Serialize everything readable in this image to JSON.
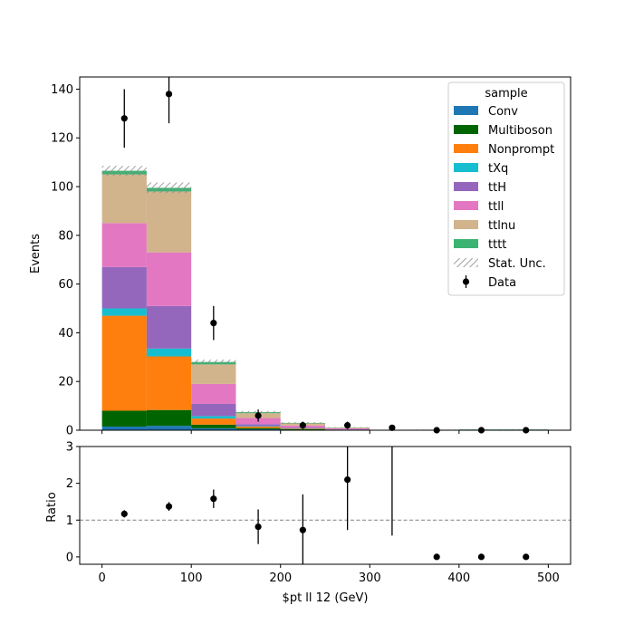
{
  "chart_data": {
    "type": "bar",
    "stacked": true,
    "bin_edges": [
      0,
      50,
      100,
      150,
      200,
      250,
      300,
      350,
      400,
      450,
      500
    ],
    "xlabel": "$pt ll 12 (GeV)",
    "ylabel": "Events",
    "ratio_ylabel": "Ratio",
    "xlim": [
      -25,
      525
    ],
    "ylim": [
      0,
      145
    ],
    "ratio_ylim": [
      -0.2,
      3
    ],
    "x_ticks": [
      0,
      100,
      200,
      300,
      400,
      500
    ],
    "y_ticks": [
      0,
      20,
      40,
      60,
      80,
      100,
      120,
      140
    ],
    "ratio_y_ticks": [
      0,
      1,
      2,
      3
    ],
    "ratio_reference_line": 1,
    "legend_title": "sample",
    "legend_position": "top-right",
    "series": [
      {
        "name": "Conv",
        "color": "#1f77b4",
        "values": [
          1.5,
          1.8,
          0.8,
          0.4,
          0.2,
          0.05,
          0,
          0,
          0,
          0
        ]
      },
      {
        "name": "Multiboson",
        "color": "#006400",
        "values": [
          6.5,
          6.5,
          1.5,
          0.5,
          0.3,
          0.1,
          0,
          0,
          0,
          0
        ]
      },
      {
        "name": "Nonprompt",
        "color": "#ff7f0e",
        "values": [
          39.0,
          22.0,
          2.5,
          0.6,
          0.2,
          0.05,
          0,
          0,
          0,
          0
        ]
      },
      {
        "name": "tXq",
        "color": "#17becf",
        "values": [
          3.0,
          3.2,
          1.0,
          0.2,
          0.1,
          0.05,
          0,
          0,
          0,
          0
        ]
      },
      {
        "name": "ttH",
        "color": "#9467bd",
        "values": [
          17.0,
          17.5,
          5.0,
          0.8,
          0.3,
          0.1,
          0,
          0,
          0,
          0
        ]
      },
      {
        "name": "ttll",
        "color": "#e377c2",
        "values": [
          18.0,
          22.0,
          8.2,
          2.5,
          0.8,
          0.4,
          0,
          0,
          0,
          0
        ]
      },
      {
        "name": "ttlnu",
        "color": "#d2b48c",
        "values": [
          20.0,
          25.0,
          8.0,
          2.0,
          0.9,
          0.3,
          0,
          0,
          0,
          0
        ]
      },
      {
        "name": "tttt",
        "color": "#3cb371",
        "values": [
          1.5,
          1.5,
          1.0,
          0.4,
          0.2,
          0.1,
          0.1,
          0.2,
          0.3,
          0.3
        ]
      }
    ],
    "stat_unc": {
      "name": "Stat. Unc.",
      "halfwidth": [
        2.0,
        2.2,
        1.0,
        0.5,
        0.3,
        0.15,
        0.05,
        0.05,
        0.05,
        0.05
      ]
    },
    "data": {
      "name": "Data",
      "x": [
        25,
        75,
        125,
        175,
        225,
        275,
        325,
        375,
        425,
        475
      ],
      "y": [
        128,
        138,
        44,
        6,
        2,
        2,
        1,
        0,
        0,
        0
      ],
      "yerr": [
        12,
        12,
        7,
        2.5,
        1.5,
        1.5,
        1,
        0,
        0,
        0
      ]
    },
    "ratio": {
      "x": [
        25,
        75,
        125,
        175,
        225,
        275,
        325,
        375,
        425,
        475
      ],
      "y": [
        1.17,
        1.37,
        1.58,
        0.82,
        0.73,
        2.1,
        null,
        0,
        0,
        0
      ],
      "yerr": [
        0.1,
        0.12,
        0.25,
        0.47,
        0.97,
        1.37,
        null,
        0,
        0,
        0
      ],
      "extra_errorbars": [
        {
          "x": 325,
          "low": 0.58,
          "high": 3.0
        }
      ]
    }
  }
}
